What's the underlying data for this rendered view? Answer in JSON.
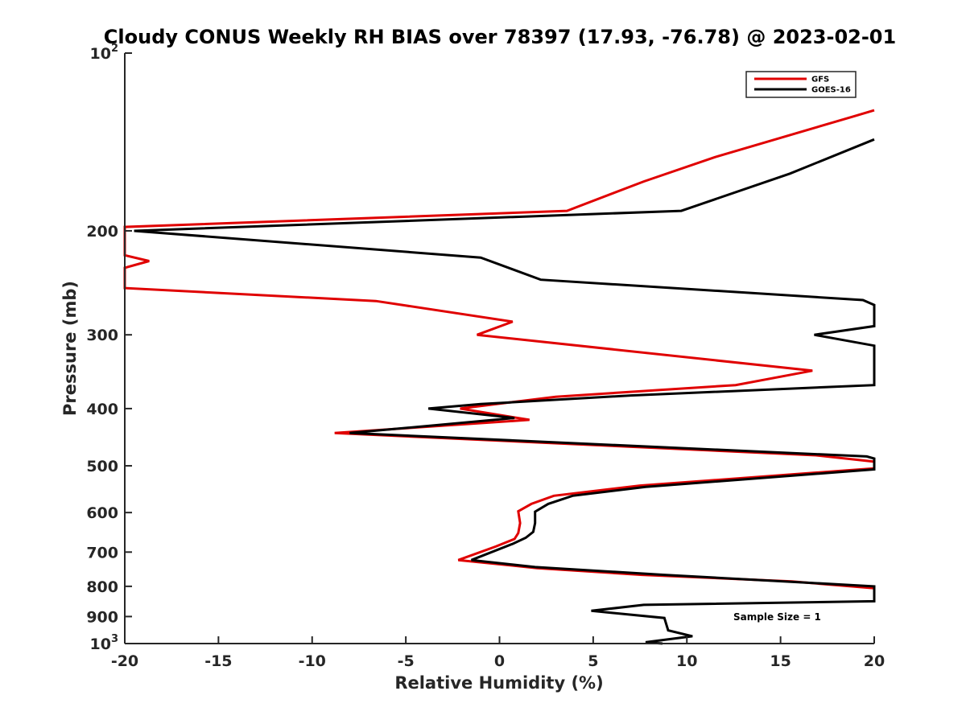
{
  "chart_data": {
    "type": "line",
    "title": "Cloudy CONUS Weekly RH BIAS over 78397 (17.93, -76.78) @ 2023-02-01",
    "xlabel": "Relative Humidity (%)",
    "ylabel": "Pressure (mb)",
    "xlim": [
      -20,
      20
    ],
    "ylim": [
      100,
      1000
    ],
    "yscale": "log",
    "y_reversed": true,
    "grid": false,
    "legend_position": "top-right",
    "annotation": "Sample Size = 1",
    "x_ticks": [
      "-20",
      "-15",
      "-10",
      "-5",
      "0",
      "5",
      "10",
      "15",
      "20"
    ],
    "y_ticks": [
      {
        "value": 100,
        "label": "10",
        "sup": "2"
      },
      {
        "value": 200,
        "label": "200",
        "sup": ""
      },
      {
        "value": 300,
        "label": "300",
        "sup": ""
      },
      {
        "value": 400,
        "label": "400",
        "sup": ""
      },
      {
        "value": 500,
        "label": "500",
        "sup": ""
      },
      {
        "value": 600,
        "label": "600",
        "sup": ""
      },
      {
        "value": 700,
        "label": "700",
        "sup": ""
      },
      {
        "value": 800,
        "label": "800",
        "sup": ""
      },
      {
        "value": 900,
        "label": "900",
        "sup": ""
      },
      {
        "value": 1000,
        "label": "10",
        "sup": "3"
      }
    ],
    "series": [
      {
        "name": "GFS",
        "color": "#e00000",
        "points": [
          {
            "x": 20.0,
            "y": 125
          },
          {
            "x": 18.9,
            "y": 128
          },
          {
            "x": 11.5,
            "y": 150
          },
          {
            "x": 7.7,
            "y": 165
          },
          {
            "x": 3.6,
            "y": 185
          },
          {
            "x": -20,
            "y": 197
          },
          {
            "x": -20,
            "y": 220
          },
          {
            "x": -18.7,
            "y": 225
          },
          {
            "x": -20,
            "y": 231
          },
          {
            "x": -20,
            "y": 250
          },
          {
            "x": -6.6,
            "y": 263
          },
          {
            "x": 0.7,
            "y": 285
          },
          {
            "x": -1.2,
            "y": 300
          },
          {
            "x": 16.7,
            "y": 345
          },
          {
            "x": 12.6,
            "y": 365
          },
          {
            "x": 3.0,
            "y": 382
          },
          {
            "x": -2.1,
            "y": 400
          },
          {
            "x": 1.6,
            "y": 418
          },
          {
            "x": -8.8,
            "y": 440
          },
          {
            "x": 16.9,
            "y": 480
          },
          {
            "x": 20.0,
            "y": 492
          },
          {
            "x": 20.0,
            "y": 505
          },
          {
            "x": 7.5,
            "y": 540
          },
          {
            "x": 2.9,
            "y": 562
          },
          {
            "x": 1.7,
            "y": 580
          },
          {
            "x": 1.0,
            "y": 597
          },
          {
            "x": 1.1,
            "y": 625
          },
          {
            "x": 1.0,
            "y": 650
          },
          {
            "x": 0.8,
            "y": 665
          },
          {
            "x": -0.2,
            "y": 685
          },
          {
            "x": -2.2,
            "y": 722
          },
          {
            "x": 2.0,
            "y": 745
          },
          {
            "x": 7.6,
            "y": 765
          },
          {
            "x": 15.6,
            "y": 785
          },
          {
            "x": 20.0,
            "y": 806
          }
        ]
      },
      {
        "name": "GOES-16",
        "color": "#000000",
        "points": [
          {
            "x": 20.0,
            "y": 140
          },
          {
            "x": 15.5,
            "y": 160
          },
          {
            "x": 9.7,
            "y": 185
          },
          {
            "x": -19.5,
            "y": 200
          },
          {
            "x": -1.0,
            "y": 222
          },
          {
            "x": 2.2,
            "y": 242
          },
          {
            "x": 19.4,
            "y": 262
          },
          {
            "x": 20.0,
            "y": 267
          },
          {
            "x": 20.0,
            "y": 290
          },
          {
            "x": 16.8,
            "y": 300
          },
          {
            "x": 20.0,
            "y": 313
          },
          {
            "x": 20.0,
            "y": 365
          },
          {
            "x": 7.0,
            "y": 380
          },
          {
            "x": -1.0,
            "y": 393
          },
          {
            "x": -3.8,
            "y": 400
          },
          {
            "x": 0.8,
            "y": 415
          },
          {
            "x": -8.0,
            "y": 440
          },
          {
            "x": 19.6,
            "y": 482
          },
          {
            "x": 20.0,
            "y": 486
          },
          {
            "x": 20.0,
            "y": 507
          },
          {
            "x": 7.8,
            "y": 543
          },
          {
            "x": 3.9,
            "y": 562
          },
          {
            "x": 2.6,
            "y": 580
          },
          {
            "x": 1.9,
            "y": 598
          },
          {
            "x": 1.9,
            "y": 625
          },
          {
            "x": 1.8,
            "y": 647
          },
          {
            "x": 1.4,
            "y": 662
          },
          {
            "x": 0.7,
            "y": 678
          },
          {
            "x": -1.5,
            "y": 722
          },
          {
            "x": 1.9,
            "y": 742
          },
          {
            "x": 8.8,
            "y": 765
          },
          {
            "x": 20.0,
            "y": 800
          },
          {
            "x": 20.0,
            "y": 848
          },
          {
            "x": 7.7,
            "y": 860
          },
          {
            "x": 4.9,
            "y": 880
          },
          {
            "x": 8.8,
            "y": 905
          },
          {
            "x": 9.0,
            "y": 950
          },
          {
            "x": 10.3,
            "y": 972
          },
          {
            "x": 7.8,
            "y": 995
          },
          {
            "x": 8.7,
            "y": 1000
          }
        ]
      }
    ]
  }
}
